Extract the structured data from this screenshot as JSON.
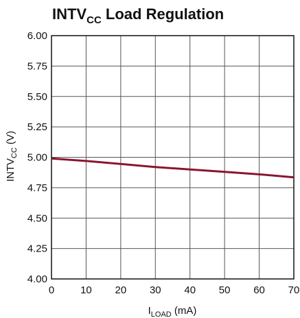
{
  "chart_data": {
    "type": "line",
    "title": {
      "main": "INTV",
      "sub": "CC",
      "rest": " Load Regulation"
    },
    "xlabel": {
      "main": "I",
      "sub": "LOAD",
      "rest": " (mA)"
    },
    "ylabel": {
      "main": "INTV",
      "sub": "CC",
      "rest": " (V)"
    },
    "xlim": [
      0,
      70
    ],
    "ylim": [
      4.0,
      6.0
    ],
    "x_ticks": [
      0,
      10,
      20,
      30,
      40,
      50,
      60,
      70
    ],
    "y_ticks": [
      "4.00",
      "4.25",
      "4.50",
      "4.75",
      "5.00",
      "5.25",
      "5.50",
      "5.75",
      "6.00"
    ],
    "grid": true,
    "line_color": "#8b1430",
    "series": [
      {
        "x": [
          0,
          10,
          20,
          30,
          40,
          50,
          60,
          70
        ],
        "y": [
          4.99,
          4.97,
          4.945,
          4.92,
          4.9,
          4.88,
          4.86,
          4.835
        ]
      }
    ]
  }
}
